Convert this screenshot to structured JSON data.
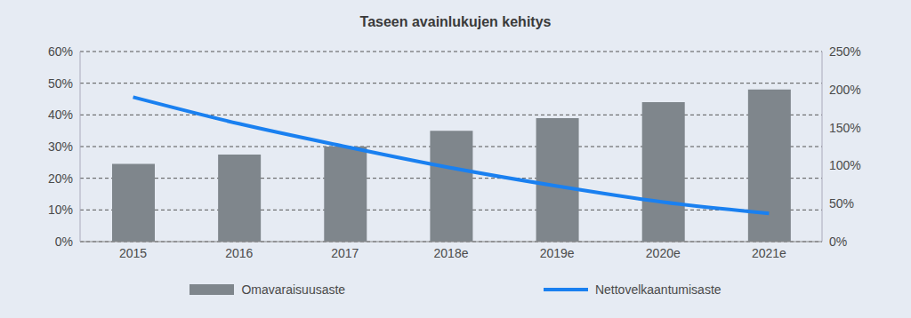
{
  "chart_data": {
    "type": "bar",
    "title": "Taseen avainlukujen kehitys",
    "categories": [
      "2015",
      "2016",
      "2017",
      "2018e",
      "2019e",
      "2020e",
      "2021e"
    ],
    "series": [
      {
        "name": "Omavaraisuusaste",
        "type": "bar",
        "color": "#7f868c",
        "values": [
          24.5,
          27.5,
          30,
          35,
          39,
          44,
          48
        ]
      },
      {
        "name": "Nettovelkaantumisaste",
        "type": "line",
        "axis": "y2",
        "color": "#1a80f0",
        "values": [
          190,
          155,
          125,
          97,
          73,
          52,
          37
        ]
      }
    ],
    "ylim": [
      0,
      60
    ],
    "yticks": [
      {
        "value": 0,
        "label": "0%"
      },
      {
        "value": 10,
        "label": "10%"
      },
      {
        "value": 20,
        "label": "20%"
      },
      {
        "value": 30,
        "label": "30%"
      },
      {
        "value": 40,
        "label": "40%"
      },
      {
        "value": 50,
        "label": "50%"
      },
      {
        "value": 60,
        "label": "60%"
      }
    ],
    "y2lim": [
      0,
      250
    ],
    "y2ticks": [
      {
        "value": 0,
        "label": "0%"
      },
      {
        "value": 50,
        "label": "50%"
      },
      {
        "value": 100,
        "label": "100%"
      },
      {
        "value": 150,
        "label": "150%"
      },
      {
        "value": 200,
        "label": "200%"
      },
      {
        "value": 250,
        "label": "250%"
      }
    ],
    "grid": true,
    "legend": "bottom"
  }
}
